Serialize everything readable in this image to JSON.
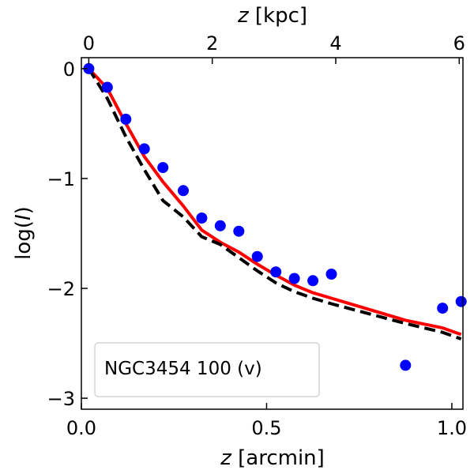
{
  "chart_data": {
    "type": "scatter",
    "title": "",
    "xlabel": {
      "prefix": "",
      "var": "z",
      "suffix": " [arcmin]"
    },
    "ylabel": {
      "prefix": "log(",
      "var": "I",
      "suffix": ")"
    },
    "top_xlabel": {
      "prefix": "",
      "var": "z",
      "suffix": " [kpc]"
    },
    "xlim": [
      0.0,
      1.03
    ],
    "ylim": [
      -3.1,
      0.1
    ],
    "xticks": [
      {
        "value": 0.0,
        "label": "0.0"
      },
      {
        "value": 0.5,
        "label": "0.5"
      },
      {
        "value": 1.0,
        "label": "1.0"
      }
    ],
    "yticks": [
      {
        "value": 0,
        "label": "0"
      },
      {
        "value": -1,
        "label": "−1"
      },
      {
        "value": -2,
        "label": "−2"
      },
      {
        "value": -3,
        "label": "−3"
      }
    ],
    "top_xticks": [
      {
        "value": 0,
        "label": "0"
      },
      {
        "value": 2,
        "label": "2"
      },
      {
        "value": 4,
        "label": "4"
      },
      {
        "value": 6,
        "label": "6"
      }
    ],
    "top_x_per_bottom": 6.0,
    "top_x_offset": -0.12,
    "legend": {
      "text": "NGC3454 100 (v)",
      "placement": "lower-left"
    },
    "series": [
      {
        "name": "data",
        "kind": "scatter",
        "color": "#0000ff",
        "x": [
          0.02,
          0.07,
          0.12,
          0.17,
          0.22,
          0.275,
          0.325,
          0.375,
          0.425,
          0.475,
          0.525,
          0.575,
          0.625,
          0.675,
          0.875,
          0.975,
          1.025
        ],
        "y": [
          0.0,
          -0.17,
          -0.46,
          -0.73,
          -0.9,
          -1.11,
          -1.36,
          -1.43,
          -1.48,
          -1.71,
          -1.85,
          -1.91,
          -1.93,
          -1.87,
          -2.7,
          -2.18,
          -2.12
        ]
      },
      {
        "name": "model-red",
        "kind": "line",
        "color": "#ff0000",
        "x": [
          0.02,
          0.07,
          0.12,
          0.17,
          0.22,
          0.275,
          0.325,
          0.375,
          0.425,
          0.475,
          0.525,
          0.575,
          0.625,
          0.675,
          0.875,
          0.975,
          1.025
        ],
        "y": [
          0.0,
          -0.18,
          -0.5,
          -0.8,
          -1.03,
          -1.25,
          -1.47,
          -1.58,
          -1.67,
          -1.78,
          -1.88,
          -1.97,
          -2.04,
          -2.09,
          -2.29,
          -2.36,
          -2.42
        ]
      },
      {
        "name": "model-black-dashed",
        "kind": "line",
        "color": "#000000",
        "dashed": true,
        "x": [
          0.02,
          0.07,
          0.12,
          0.17,
          0.22,
          0.275,
          0.325,
          0.375,
          0.425,
          0.475,
          0.525,
          0.575,
          0.625,
          0.675,
          0.875,
          0.975,
          1.025
        ],
        "y": [
          0.0,
          -0.27,
          -0.62,
          -0.92,
          -1.2,
          -1.35,
          -1.53,
          -1.6,
          -1.72,
          -1.84,
          -1.95,
          -2.03,
          -2.09,
          -2.14,
          -2.32,
          -2.4,
          -2.46
        ]
      }
    ]
  }
}
